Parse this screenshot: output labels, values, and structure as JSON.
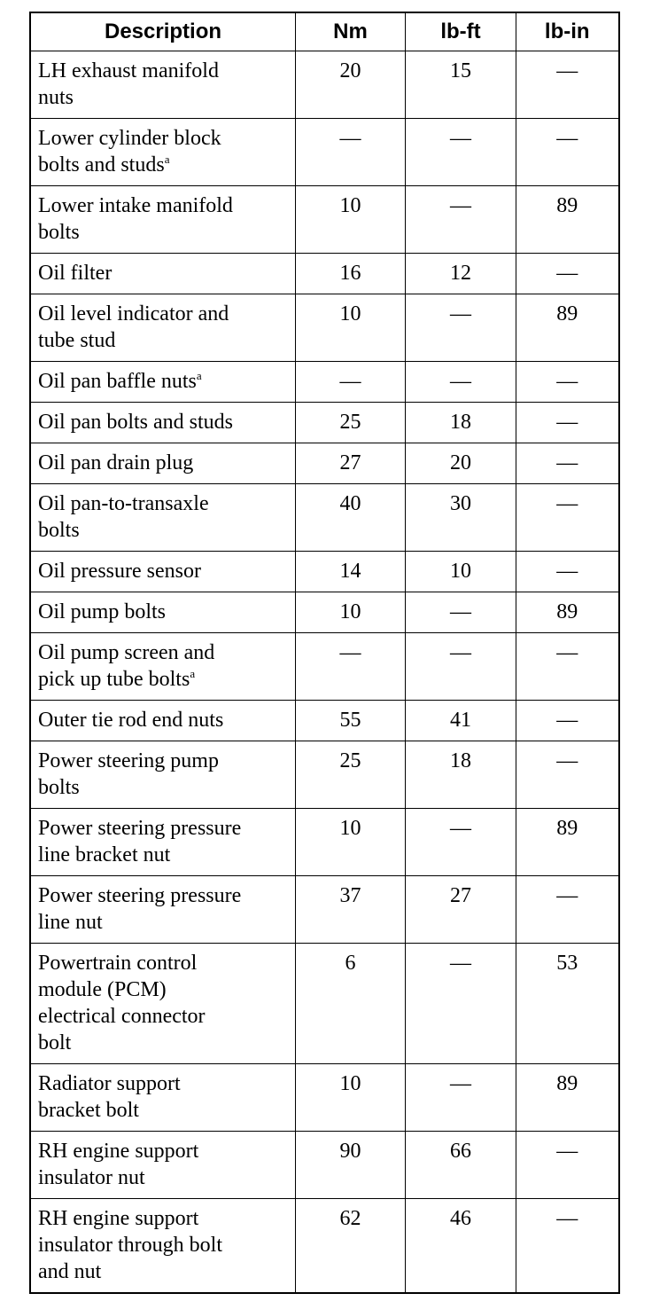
{
  "table": {
    "headers": [
      "Description",
      "Nm",
      "lb-ft",
      "lb-in"
    ],
    "rows": [
      {
        "description": "LH exhaust manifold\nnuts",
        "note": "",
        "nm": "20",
        "lbft": "15",
        "lbin": "—"
      },
      {
        "description": "Lower cylinder block\nbolts and studs",
        "note": "a",
        "nm": "—",
        "lbft": "—",
        "lbin": "—"
      },
      {
        "description": "Lower intake manifold\nbolts",
        "note": "",
        "nm": "10",
        "lbft": "—",
        "lbin": "89"
      },
      {
        "description": "Oil filter",
        "note": "",
        "nm": "16",
        "lbft": "12",
        "lbin": "—"
      },
      {
        "description": "Oil level indicator and\ntube stud",
        "note": "",
        "nm": "10",
        "lbft": "—",
        "lbin": "89"
      },
      {
        "description": "Oil pan baffle nuts",
        "note": "a",
        "nm": "—",
        "lbft": "—",
        "lbin": "—"
      },
      {
        "description": "Oil pan bolts and studs",
        "note": "",
        "nm": "25",
        "lbft": "18",
        "lbin": "—"
      },
      {
        "description": "Oil pan drain plug",
        "note": "",
        "nm": "27",
        "lbft": "20",
        "lbin": "—"
      },
      {
        "description": "Oil pan-to-transaxle\nbolts",
        "note": "",
        "nm": "40",
        "lbft": "30",
        "lbin": "—"
      },
      {
        "description": "Oil pressure sensor",
        "note": "",
        "nm": "14",
        "lbft": "10",
        "lbin": "—"
      },
      {
        "description": "Oil pump bolts",
        "note": "",
        "nm": "10",
        "lbft": "—",
        "lbin": "89"
      },
      {
        "description": "Oil pump screen and\npick up tube bolts",
        "note": "a",
        "nm": "—",
        "lbft": "—",
        "lbin": "—"
      },
      {
        "description": "Outer tie rod end nuts",
        "note": "",
        "nm": "55",
        "lbft": "41",
        "lbin": "—"
      },
      {
        "description": "Power steering pump\nbolts",
        "note": "",
        "nm": "25",
        "lbft": "18",
        "lbin": "—"
      },
      {
        "description": "Power steering pressure\nline bracket nut",
        "note": "",
        "nm": "10",
        "lbft": "—",
        "lbin": "89"
      },
      {
        "description": "Power steering pressure\nline nut",
        "note": "",
        "nm": "37",
        "lbft": "27",
        "lbin": "—"
      },
      {
        "description": "Powertrain control\nmodule (PCM)\nelectrical connector\nbolt",
        "note": "",
        "nm": "6",
        "lbft": "—",
        "lbin": "53"
      },
      {
        "description": "Radiator support\nbracket bolt",
        "note": "",
        "nm": "10",
        "lbft": "—",
        "lbin": "89"
      },
      {
        "description": "RH engine support\ninsulator nut",
        "note": "",
        "nm": "90",
        "lbft": "66",
        "lbin": "—"
      },
      {
        "description": "RH engine support\ninsulator through bolt\nand nut",
        "note": "",
        "nm": "62",
        "lbft": "46",
        "lbin": "—"
      }
    ]
  }
}
